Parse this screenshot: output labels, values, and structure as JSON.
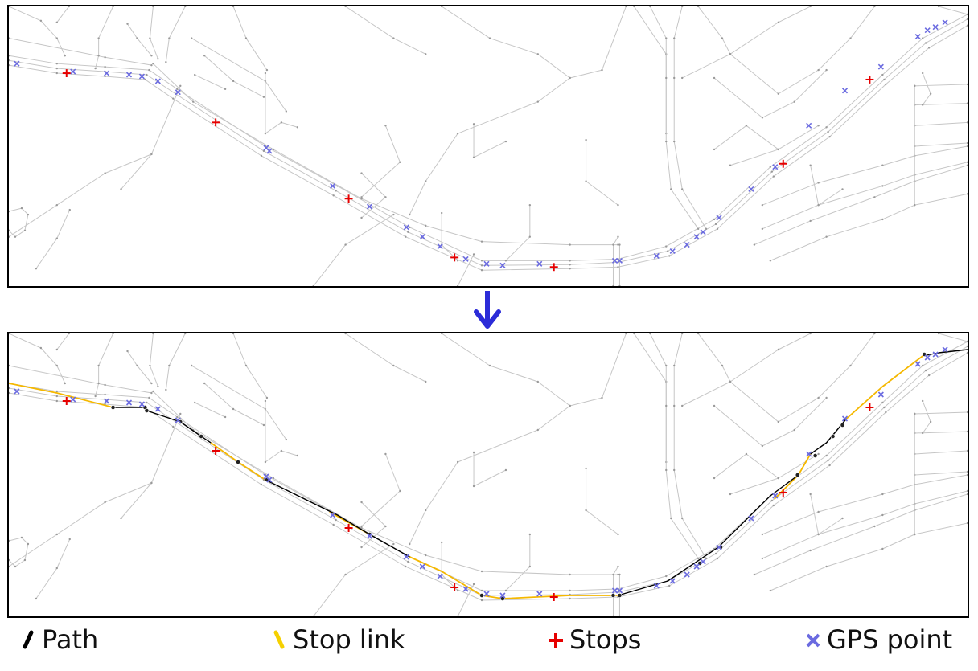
{
  "colors": {
    "network": "#c6c6c6",
    "node": "#9a9a9a",
    "gps": "#6b6be0",
    "stop": "#e60000",
    "path": "#000000",
    "stop_link": "#f5b800",
    "arrow": "#2c2cd8"
  },
  "legend": {
    "path_label": "Path",
    "stop_link_label": "Stop link",
    "stops_label": "Stops",
    "gps_label": "GPS point"
  },
  "arrow_icon": "down-arrow-icon"
}
